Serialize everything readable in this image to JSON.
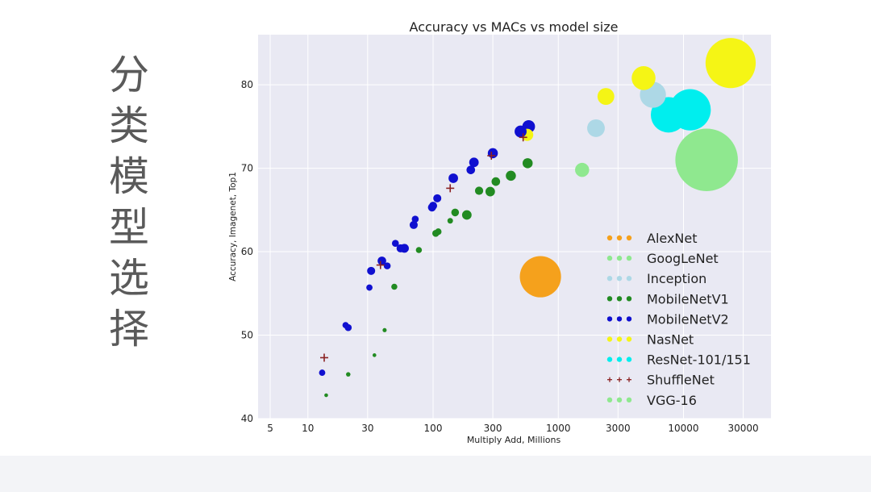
{
  "side_title": {
    "chars": [
      "分",
      "类",
      "模",
      "型",
      "选",
      "择"
    ]
  },
  "colors": {
    "plot_bg": "#e9e9f3",
    "grid": "#ffffff",
    "AlexNet": "#f5a11c",
    "GoogLeNet": "#8fe88f",
    "Inception": "#add8e6",
    "MobileNetV1": "#228b22",
    "MobileNetV2": "#1010d0",
    "NasNet": "#f5f515",
    "ResNet": "#00eeee",
    "ShuffleNet": "#8b2222",
    "VGG": "#8fe88f"
  },
  "chart_data": {
    "type": "scatter",
    "title": "Accuracy vs MACs vs model size",
    "xlabel": "Multiply Add, Millions",
    "ylabel": "Accuracy, Imagenet, Top1",
    "xscale": "log",
    "xlim": [
      4,
      50000
    ],
    "ylim": [
      40,
      86
    ],
    "xticks": [
      5,
      10,
      30,
      100,
      300,
      1000,
      3000,
      10000,
      30000
    ],
    "xtick_labels": [
      "5",
      "10",
      "30",
      "100",
      "300",
      "1000",
      "3000",
      "10000",
      "30000"
    ],
    "yticks": [
      40,
      50,
      60,
      70,
      80
    ],
    "ytick_labels": [
      "40",
      "50",
      "60",
      "70",
      "80"
    ],
    "grid": true,
    "legend_position": "lower-right",
    "legend_marker": "●●●",
    "series": [
      {
        "name": "AlexNet",
        "color_key": "AlexNet",
        "marker": "circle",
        "points": [
          {
            "x": 720,
            "y": 57.0,
            "size": 60
          }
        ]
      },
      {
        "name": "GoogLeNet",
        "color_key": "GoogLeNet",
        "marker": "circle",
        "points": [
          {
            "x": 1550,
            "y": 69.8,
            "size": 7
          }
        ]
      },
      {
        "name": "Inception",
        "color_key": "Inception",
        "marker": "circle",
        "points": [
          {
            "x": 2000,
            "y": 74.8,
            "size": 11
          },
          {
            "x": 5700,
            "y": 78.8,
            "size": 24
          }
        ]
      },
      {
        "name": "MobileNetV1",
        "color_key": "MobileNetV1",
        "marker": "circle",
        "points": [
          {
            "x": 14,
            "y": 42.8,
            "size": 0.5
          },
          {
            "x": 21,
            "y": 45.3,
            "size": 0.7
          },
          {
            "x": 34,
            "y": 47.6,
            "size": 0.5
          },
          {
            "x": 41,
            "y": 50.6,
            "size": 0.6
          },
          {
            "x": 49,
            "y": 55.8,
            "size": 1.3
          },
          {
            "x": 77,
            "y": 60.2,
            "size": 1.3
          },
          {
            "x": 105,
            "y": 62.2,
            "size": 1.7
          },
          {
            "x": 110,
            "y": 62.4,
            "size": 1.5
          },
          {
            "x": 137,
            "y": 63.7,
            "size": 1.1
          },
          {
            "x": 150,
            "y": 64.7,
            "size": 2.1
          },
          {
            "x": 186,
            "y": 64.4,
            "size": 3.2
          },
          {
            "x": 233,
            "y": 67.3,
            "size": 2.4
          },
          {
            "x": 286,
            "y": 67.2,
            "size": 3.2
          },
          {
            "x": 317,
            "y": 68.4,
            "size": 2.6
          },
          {
            "x": 418,
            "y": 69.1,
            "size": 3.6
          },
          {
            "x": 569,
            "y": 70.6,
            "size": 3.6
          }
        ]
      },
      {
        "name": "MobileNetV2",
        "color_key": "MobileNetV2",
        "marker": "circle",
        "points": [
          {
            "x": 13,
            "y": 45.5,
            "size": 1.4
          },
          {
            "x": 20,
            "y": 51.2,
            "size": 1.4
          },
          {
            "x": 21,
            "y": 50.9,
            "size": 1.7
          },
          {
            "x": 31,
            "y": 55.7,
            "size": 1.4
          },
          {
            "x": 32,
            "y": 57.7,
            "size": 2.3
          },
          {
            "x": 39,
            "y": 58.9,
            "size": 2.6
          },
          {
            "x": 43,
            "y": 58.3,
            "size": 1.7
          },
          {
            "x": 50,
            "y": 61.0,
            "size": 1.7
          },
          {
            "x": 55,
            "y": 60.4,
            "size": 2.3
          },
          {
            "x": 59,
            "y": 60.4,
            "size": 2.8
          },
          {
            "x": 70,
            "y": 63.2,
            "size": 2.3
          },
          {
            "x": 72,
            "y": 63.9,
            "size": 1.7
          },
          {
            "x": 98,
            "y": 65.3,
            "size": 2.3
          },
          {
            "x": 100,
            "y": 65.5,
            "size": 2.3
          },
          {
            "x": 108,
            "y": 66.4,
            "size": 2.3
          },
          {
            "x": 145,
            "y": 68.8,
            "size": 3.2
          },
          {
            "x": 200,
            "y": 69.8,
            "size": 2.6
          },
          {
            "x": 212,
            "y": 70.7,
            "size": 3.2
          },
          {
            "x": 300,
            "y": 71.8,
            "size": 3.6
          },
          {
            "x": 500,
            "y": 74.4,
            "size": 5.1
          },
          {
            "x": 580,
            "y": 75.0,
            "size": 5.7
          }
        ]
      },
      {
        "name": "NasNet",
        "color_key": "NasNet",
        "marker": "circle",
        "points": [
          {
            "x": 564,
            "y": 74.0,
            "size": 5.3
          },
          {
            "x": 2400,
            "y": 78.6,
            "size": 10
          },
          {
            "x": 4800,
            "y": 80.8,
            "size": 20
          },
          {
            "x": 23800,
            "y": 82.6,
            "size": 88.9
          }
        ]
      },
      {
        "name": "ResNet-101/151",
        "color_key": "ResNet",
        "marker": "circle",
        "points": [
          {
            "x": 7600,
            "y": 76.4,
            "size": 44.5
          },
          {
            "x": 11300,
            "y": 77.0,
            "size": 60.2
          }
        ]
      },
      {
        "name": "ShuffleNet",
        "color_key": "ShuffleNet",
        "marker": "plus",
        "points": [
          {
            "x": 13.5,
            "y": 47.3
          },
          {
            "x": 38,
            "y": 58.4
          },
          {
            "x": 137,
            "y": 67.6
          },
          {
            "x": 292,
            "y": 71.5
          },
          {
            "x": 524,
            "y": 73.7
          }
        ]
      },
      {
        "name": "VGG-16",
        "color_key": "VGG",
        "marker": "circle",
        "points": [
          {
            "x": 15300,
            "y": 71.0,
            "size": 138
          }
        ]
      }
    ]
  }
}
